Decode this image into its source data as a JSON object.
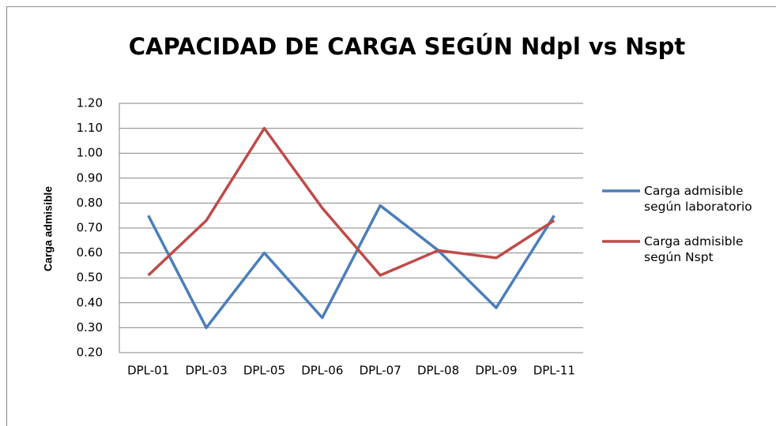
{
  "chart_data": {
    "type": "line",
    "title": "CAPACIDAD DE CARGA SEGÚN Ndpl vs Nspt",
    "y_label": "Carga admisible",
    "categories": [
      "DPL-01",
      "DPL-03",
      "DPL-05",
      "DPL-06",
      "DPL-07",
      "DPL-08",
      "DPL-09",
      "DPL-11"
    ],
    "series": [
      {
        "name": "Carga admisible según laboratorio",
        "color": "#4a7ebb",
        "values": [
          0.75,
          0.3,
          0.6,
          0.34,
          0.79,
          0.61,
          0.38,
          0.75
        ]
      },
      {
        "name": "Carga admisible según Nspt",
        "color": "#be4b48",
        "values": [
          0.51,
          0.73,
          1.1,
          0.78,
          0.51,
          0.61,
          0.58,
          0.73
        ]
      }
    ],
    "ylim": [
      0.2,
      1.2
    ],
    "yticks": [
      {
        "value": 0.2,
        "label": "0.20"
      },
      {
        "value": 0.3,
        "label": "0.30"
      },
      {
        "value": 0.4,
        "label": "0.40"
      },
      {
        "value": 0.5,
        "label": "0.50"
      },
      {
        "value": 0.6,
        "label": "0.60"
      },
      {
        "value": 0.7,
        "label": "0.70"
      },
      {
        "value": 0.8,
        "label": "0.80"
      },
      {
        "value": 0.9,
        "label": "0.90"
      },
      {
        "value": 1.0,
        "label": "1.00"
      },
      {
        "value": 1.1,
        "label": "1.10"
      },
      {
        "value": 1.2,
        "label": "1.20"
      }
    ],
    "grid": true,
    "legend": "right"
  }
}
